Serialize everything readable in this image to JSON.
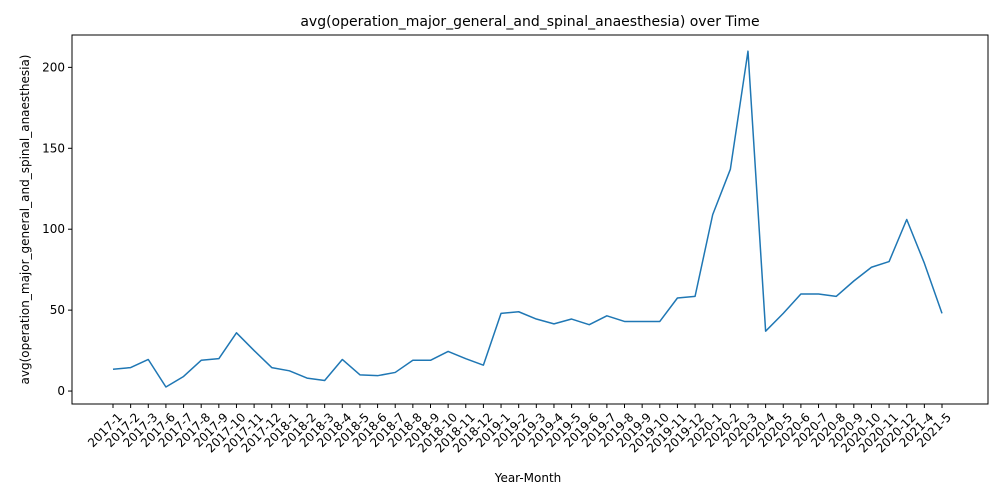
{
  "chart_data": {
    "type": "line",
    "title": "avg(operation_major_general_and_spinal_anaesthesia) over Time",
    "xlabel": "Year-Month",
    "ylabel": "avg(operation_major_general_and_spinal_anaesthesia)",
    "ylim": [
      -8,
      220
    ],
    "yticks": [
      0,
      50,
      100,
      150,
      200
    ],
    "grid": false,
    "categories": [
      "2017-1",
      "2017-2",
      "2017-3",
      "2017-6",
      "2017-7",
      "2017-8",
      "2017-9",
      "2017-10",
      "2017-11",
      "2017-12",
      "2018-1",
      "2018-2",
      "2018-3",
      "2018-4",
      "2018-5",
      "2018-6",
      "2018-7",
      "2018-8",
      "2018-9",
      "2018-10",
      "2018-11",
      "2018-12",
      "2019-1",
      "2019-2",
      "2019-3",
      "2019-4",
      "2019-5",
      "2019-6",
      "2019-7",
      "2019-8",
      "2019-9",
      "2019-10",
      "2019-11",
      "2019-12",
      "2020-1",
      "2020-2",
      "2020-3",
      "2020-4",
      "2020-5",
      "2020-6",
      "2020-7",
      "2020-8",
      "2020-9",
      "2020-10",
      "2020-11",
      "2020-12",
      "2021-4",
      "2021-5"
    ],
    "series": [
      {
        "color": "#1f77b4",
        "values": [
          13.5,
          14.5,
          19.5,
          2.5,
          9,
          19,
          20,
          36,
          25,
          14.5,
          12.5,
          8,
          6.5,
          19.5,
          10,
          9.5,
          11.5,
          19,
          19,
          24.5,
          20,
          16,
          48,
          49,
          44.5,
          41.5,
          44.5,
          41,
          46.5,
          43,
          43,
          43,
          57.5,
          58.5,
          109,
          137,
          210,
          37,
          48,
          60,
          60,
          58.5,
          68,
          76.5,
          80,
          106,
          79,
          48
        ]
      }
    ]
  }
}
